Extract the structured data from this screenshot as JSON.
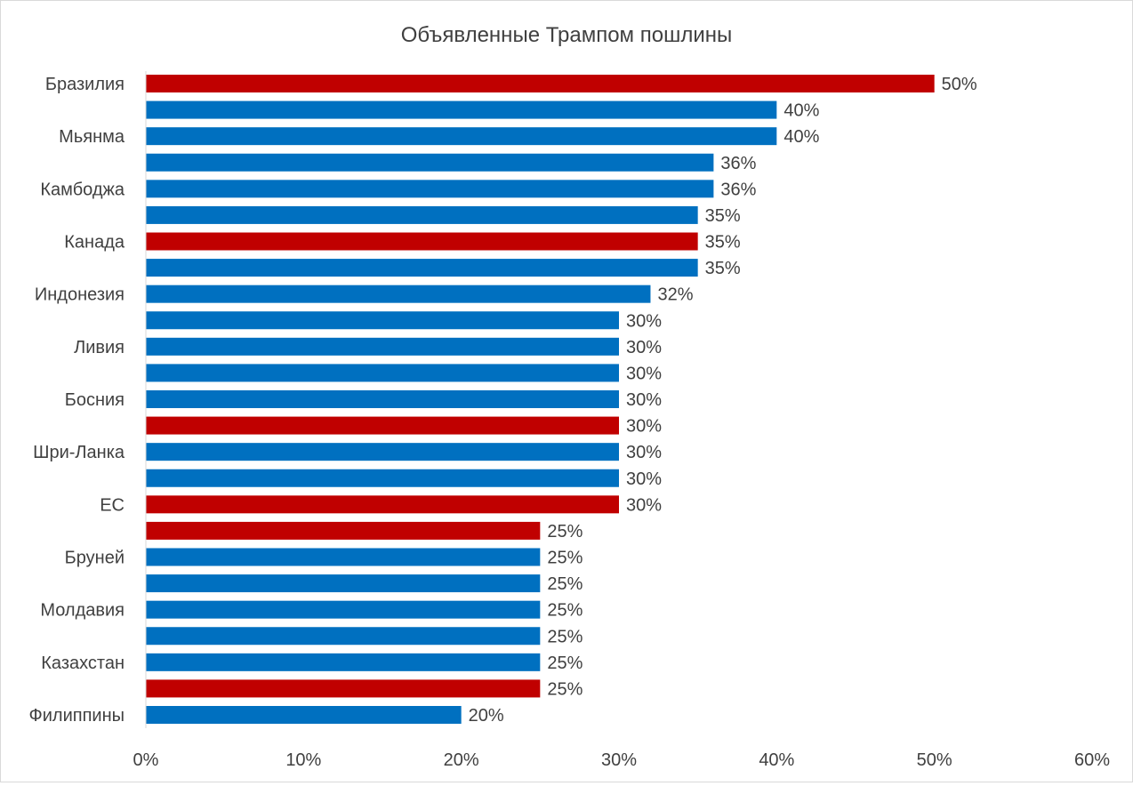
{
  "chart_data": {
    "type": "bar",
    "orientation": "horizontal",
    "title": "Объявленные Трампом пошлины",
    "xlabel": "",
    "ylabel": "",
    "xlim": [
      0,
      60
    ],
    "x_ticks": [
      "0%",
      "10%",
      "20%",
      "30%",
      "40%",
      "50%",
      "60%"
    ],
    "grid": false,
    "legend": "none",
    "categories": [
      "Бразилия",
      "",
      "Мьянма",
      "",
      "Камбоджа",
      "",
      "Канада",
      "",
      "Индонезия",
      "",
      "Ливия",
      "",
      "Босния",
      "",
      "Шри-Ланка",
      "",
      "ЕС",
      "",
      "Бруней",
      "",
      "Молдавия",
      "",
      "Казахстан",
      "",
      "Филиппины"
    ],
    "values": [
      50,
      40,
      40,
      36,
      36,
      35,
      35,
      35,
      32,
      30,
      30,
      30,
      30,
      30,
      30,
      30,
      30,
      25,
      25,
      25,
      25,
      25,
      25,
      25,
      20
    ],
    "data_labels": [
      "50%",
      "40%",
      "40%",
      "36%",
      "36%",
      "35%",
      "35%",
      "35%",
      "32%",
      "30%",
      "30%",
      "30%",
      "30%",
      "30%",
      "30%",
      "30%",
      "30%",
      "25%",
      "25%",
      "25%",
      "25%",
      "25%",
      "25%",
      "25%",
      "20%"
    ],
    "highlight": [
      true,
      false,
      false,
      false,
      false,
      false,
      true,
      false,
      false,
      false,
      false,
      false,
      false,
      true,
      false,
      false,
      true,
      true,
      false,
      false,
      false,
      false,
      false,
      true,
      false
    ],
    "colors": {
      "default": "#0070C0",
      "highlight": "#C00000",
      "text": "#404040",
      "axis": "#d9d9d9"
    }
  }
}
